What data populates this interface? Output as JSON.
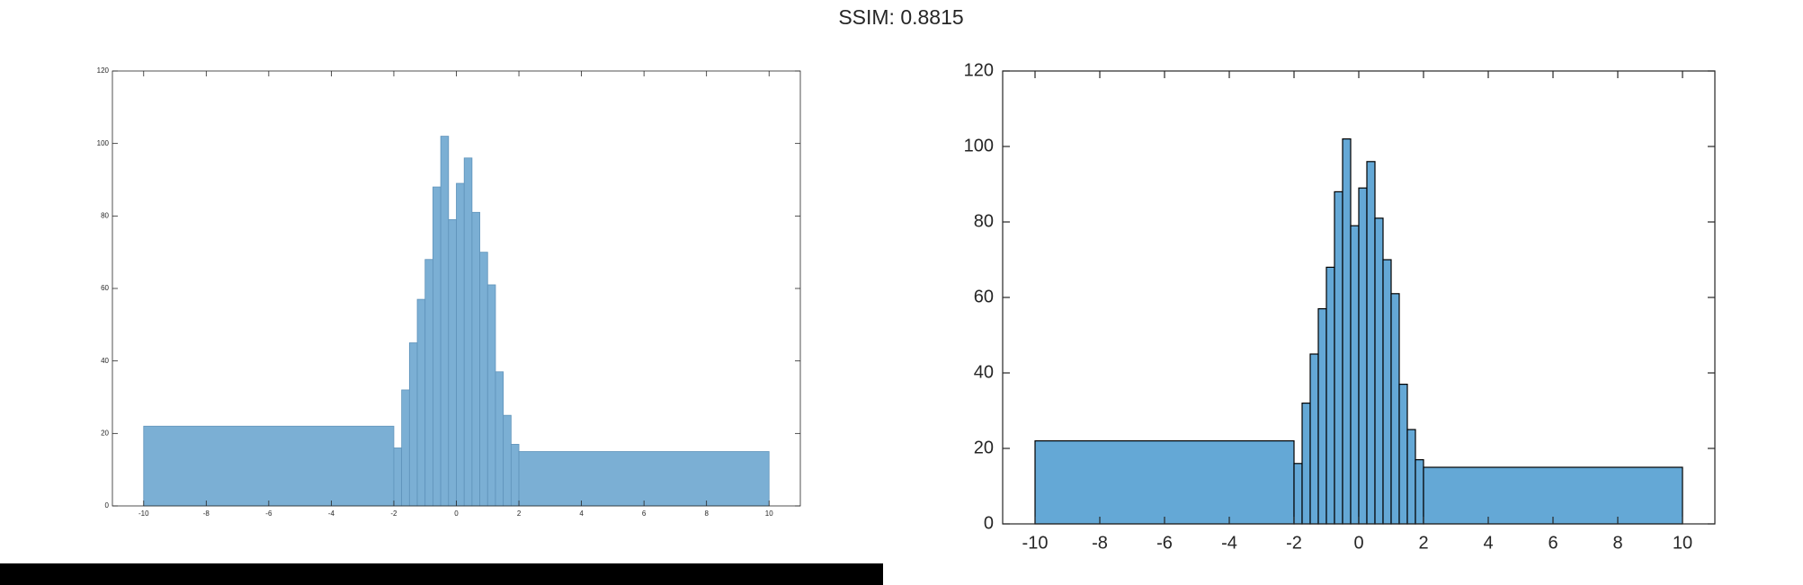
{
  "title": "SSIM: 0.8815",
  "chart_data": [
    {
      "type": "histogram",
      "color": "#7bafd4",
      "edgecolor": "#5f93ba",
      "bins": [
        -10,
        -2,
        -1.75,
        -1.5,
        -1.25,
        -1,
        -0.75,
        -0.5,
        -0.25,
        0,
        0.25,
        0.5,
        0.75,
        1,
        1.25,
        1.5,
        1.75,
        2,
        10
      ],
      "values": [
        22,
        16,
        32,
        45,
        57,
        68,
        88,
        102,
        79,
        89,
        96,
        81,
        70,
        61,
        37,
        25,
        17,
        15
      ],
      "xlim": [
        -11,
        11
      ],
      "ylim": [
        0,
        120
      ],
      "xticks": [
        -10,
        -8,
        -6,
        -4,
        -2,
        0,
        2,
        4,
        6,
        8,
        10
      ],
      "yticks": [
        0,
        20,
        40,
        60,
        80,
        100,
        120
      ]
    },
    {
      "type": "histogram",
      "color": "#64a8d6",
      "edgecolor": "#000000",
      "bins": [
        -10,
        -2,
        -1.75,
        -1.5,
        -1.25,
        -1,
        -0.75,
        -0.5,
        -0.25,
        0,
        0.25,
        0.5,
        0.75,
        1,
        1.25,
        1.5,
        1.75,
        2,
        10
      ],
      "values": [
        22,
        16,
        32,
        45,
        57,
        68,
        88,
        102,
        79,
        89,
        96,
        81,
        70,
        61,
        37,
        25,
        17,
        15
      ],
      "xlim": [
        -11,
        11
      ],
      "ylim": [
        0,
        120
      ],
      "xticks": [
        -10,
        -8,
        -6,
        -4,
        -2,
        0,
        2,
        4,
        6,
        8,
        10
      ],
      "yticks": [
        0,
        20,
        40,
        60,
        80,
        100,
        120
      ]
    }
  ]
}
